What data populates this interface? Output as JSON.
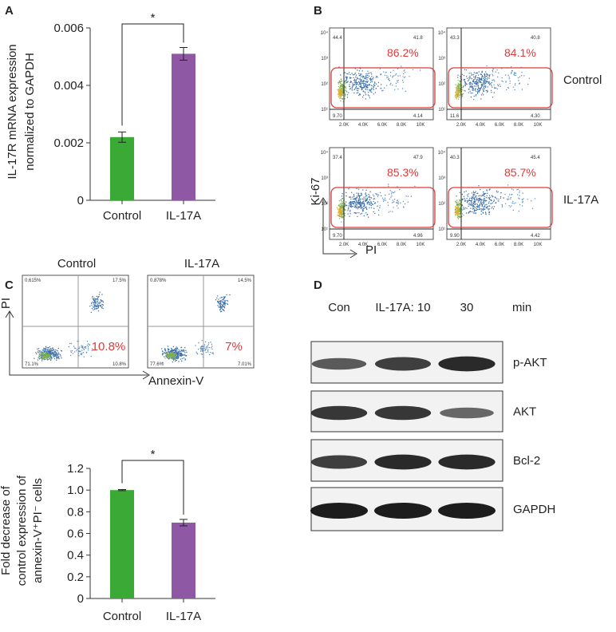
{
  "chart_data": [
    {
      "type": "bar",
      "panel": "A",
      "ylabel": [
        "IL-17R mRNA expression",
        "normalized to GAPDH"
      ],
      "categories": [
        "Control",
        "IL-17A"
      ],
      "values": [
        0.0022,
        0.0051
      ],
      "errors": [
        0.00018,
        0.00022
      ],
      "colors": [
        "#3aa935",
        "#8e58a4"
      ],
      "ylim": [
        0,
        0.006
      ],
      "yticks": [
        0,
        0.002,
        0.004,
        0.006
      ],
      "significance": "*"
    },
    {
      "type": "bar",
      "ylabel": [
        "Fold decrease of",
        "control expression of",
        "annexin-V⁺PI⁻ cells"
      ],
      "categories": [
        "Control",
        "IL-17A"
      ],
      "values": [
        1.0,
        0.7
      ],
      "errors": [
        0.005,
        0.03
      ],
      "colors": [
        "#3aa935",
        "#8e58a4"
      ],
      "ylim": [
        0,
        1.2
      ],
      "yticks": [
        0,
        0.2,
        0.4,
        0.6,
        0.8,
        {
          "value": 1,
          "label": "1.0"
        },
        1.2
      ],
      "significance": "*"
    }
  ],
  "flow_b": {
    "panel": "B",
    "row_labels": [
      "Control",
      "IL-17A"
    ],
    "y_axis": "Ki-67",
    "x_axis": "PI",
    "xticks": [
      "2.0K",
      "4.0K",
      "6.0K",
      "8.0K",
      "10K"
    ],
    "yticks": [
      "10¹",
      "10²",
      "10³",
      "10⁴"
    ],
    "plots": [
      {
        "gate": "86.2%",
        "q1": "44.4",
        "q2": "41.8",
        "q3": "4.14",
        "q4": "9.70"
      },
      {
        "gate": "84.1%",
        "q1": "43.3",
        "q2": "40.8",
        "q3": "4.30",
        "q4": "11.6"
      },
      {
        "gate": "85.3%",
        "q1": "37.4",
        "q2": "47.9",
        "q3": "4.96",
        "q4": "9.70"
      },
      {
        "gate": "85.7%",
        "q1": "40.3",
        "q2": "45.4",
        "q3": "4.42",
        "q4": "9.90"
      }
    ]
  },
  "flow_c": {
    "panel": "C",
    "titles": [
      "Control",
      "IL-17A"
    ],
    "y_axis": "PI",
    "x_axis": "Annexin-V",
    "plots": [
      {
        "highlight": "10.8%",
        "q1": "0.615%",
        "q2": "17.5%",
        "q3": "10.8%",
        "q4": "71.1%"
      },
      {
        "highlight": "7%",
        "q1": "0.878%",
        "q2": "14.5%",
        "q3": "7.01%",
        "q4": "77.6%"
      }
    ]
  },
  "blot_d": {
    "panel": "D",
    "lanes": [
      "Con",
      "IL-17A: 10",
      "30"
    ],
    "unit": "min",
    "rows": [
      "p-AKT",
      "AKT",
      "Bcl-2",
      "GAPDH"
    ]
  }
}
